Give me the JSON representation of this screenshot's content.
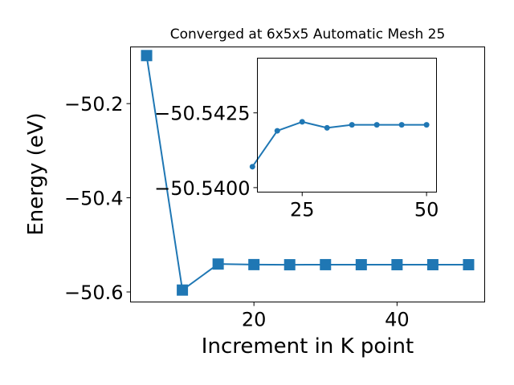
{
  "chart_data": [
    {
      "type": "line",
      "title": "Converged at 6x5x5 Automatic Mesh 25",
      "xlabel": "Increment in K point",
      "ylabel": "Energy (eV)",
      "xlim": [
        2.75,
        52.25
      ],
      "ylim": [
        -50.6213,
        -50.0796
      ],
      "xticks": [
        20,
        40
      ],
      "yticks": [
        -50.6,
        -50.4,
        -50.2
      ],
      "ytick_labels": [
        "−50.6",
        "−50.4",
        "−50.2"
      ],
      "xtick_labels": [
        "20",
        "40"
      ],
      "marker": "square",
      "color": "#1f77b4",
      "series": [
        {
          "x": [
            5,
            10,
            15,
            20,
            25,
            30,
            35,
            40,
            45,
            50
          ],
          "y": [
            -50.098,
            -50.596,
            -50.5407,
            -50.5419,
            -50.5422,
            -50.542,
            -50.5421,
            -50.5421,
            -50.5421,
            -50.5421
          ]
        }
      ]
    },
    {
      "type": "line",
      "inset": true,
      "xlim": [
        16,
        52
      ],
      "ylim": [
        -50.53985,
        -50.54433
      ],
      "xticks": [
        25,
        50
      ],
      "yticks": [
        -50.5425,
        -50.54
      ],
      "ytick_labels": [
        "−50.5425",
        "−50.5400"
      ],
      "xtick_labels": [
        "25",
        "50"
      ],
      "marker": "circle",
      "color": "#1f77b4",
      "series": [
        {
          "x": [
            15,
            20,
            25,
            30,
            35,
            40,
            45,
            50
          ],
          "y": [
            -50.5407,
            -50.5419,
            -50.5422,
            -50.542,
            -50.5421,
            -50.5421,
            -50.5421,
            -50.5421
          ]
        }
      ]
    }
  ]
}
